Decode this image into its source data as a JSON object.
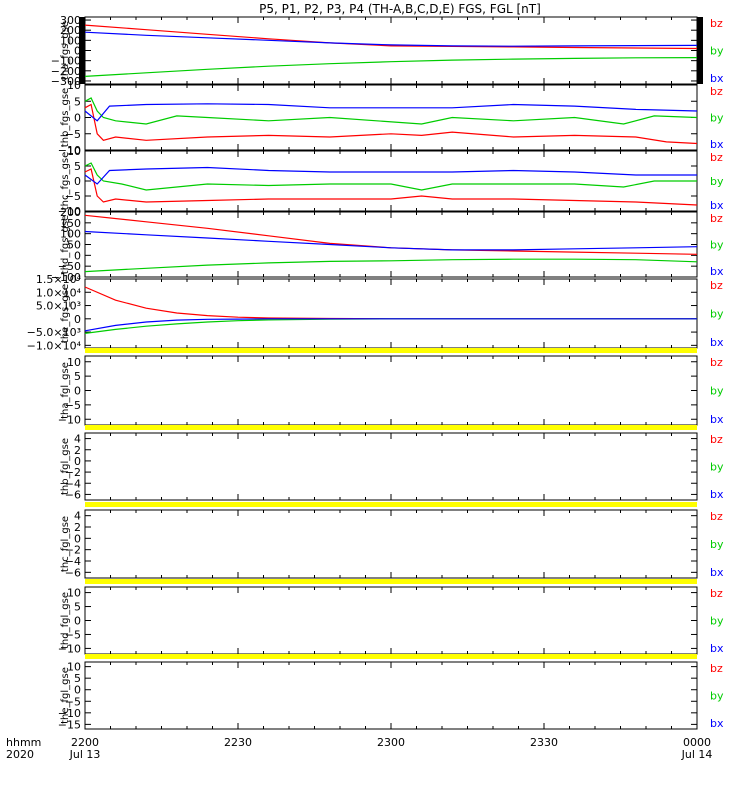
{
  "chart_data": {
    "type": "line",
    "title": "P5, P1, P2, P3, P4 (TH-A,B,C,D,E) FGS, FGL [nT]",
    "x_axis": {
      "ticks": [
        "2200",
        "2230",
        "2300",
        "2330",
        "0000"
      ],
      "dates": {
        "start": "Jul 13",
        "end": "Jul 14"
      },
      "label_top": "hhmm",
      "label_bottom": "2020"
    },
    "colors": {
      "bx": "#0000ff",
      "by": "#00cc00",
      "bz": "#ff0000",
      "gap_bar": "#ffff00"
    },
    "panels": [
      {
        "ylabel": "tha_fgs_gse",
        "ylim": [
          -330,
          330
        ],
        "ticks": [
          300,
          200,
          100,
          0,
          -100,
          -200,
          -300
        ],
        "tick_labels": [
          "300",
          "200",
          "100",
          "0",
          "−100",
          "−200",
          "−300"
        ],
        "legend": [
          "bz",
          "by",
          "bx"
        ],
        "edge_black_bars": true,
        "series": [
          {
            "name": "bz",
            "x": [
              0,
              0.1,
              0.2,
              0.3,
              0.4,
              0.5,
              0.6,
              0.7,
              0.8,
              0.9,
              1
            ],
            "y": [
              250,
              205,
              160,
              115,
              75,
              45,
              40,
              35,
              30,
              25,
              20
            ]
          },
          {
            "name": "by",
            "x": [
              0,
              0.1,
              0.2,
              0.3,
              0.4,
              0.5,
              0.6,
              0.7,
              0.8,
              0.9,
              1
            ],
            "y": [
              -255,
              -220,
              -185,
              -155,
              -130,
              -110,
              -95,
              -85,
              -78,
              -72,
              -70
            ]
          },
          {
            "name": "bx",
            "x": [
              0,
              0.1,
              0.2,
              0.3,
              0.4,
              0.5,
              0.6,
              0.7,
              0.8,
              0.9,
              1
            ],
            "y": [
              180,
              150,
              125,
              100,
              75,
              55,
              45,
              42,
              45,
              48,
              50
            ]
          }
        ]
      },
      {
        "ylabel": "thb_fgs_gse",
        "ylim": [
          -10,
          10
        ],
        "ticks": [
          10,
          5,
          0,
          -5,
          -10
        ],
        "tick_labels": [
          "10",
          "5",
          "0",
          "−5",
          "−10"
        ],
        "legend": [
          "bz",
          "by",
          "bx"
        ],
        "series": [
          {
            "name": "bz",
            "x": [
              0,
              0.01,
              0.02,
              0.03,
              0.05,
              0.1,
              0.2,
              0.3,
              0.4,
              0.5,
              0.55,
              0.6,
              0.7,
              0.8,
              0.9,
              0.95,
              1
            ],
            "y": [
              3,
              4,
              -5,
              -7,
              -6,
              -7,
              -6,
              -5.5,
              -6,
              -5,
              -5.5,
              -4.5,
              -6,
              -5.5,
              -6,
              -7.5,
              -8
            ]
          },
          {
            "name": "by",
            "x": [
              0,
              0.01,
              0.02,
              0.03,
              0.05,
              0.1,
              0.15,
              0.2,
              0.3,
              0.4,
              0.55,
              0.6,
              0.7,
              0.8,
              0.88,
              0.93,
              1
            ],
            "y": [
              5,
              6,
              2,
              0,
              -1,
              -2,
              0.5,
              0,
              -1,
              0,
              -2,
              0,
              -1,
              0,
              -2,
              0.5,
              0
            ]
          },
          {
            "name": "bx",
            "x": [
              0,
              0.02,
              0.04,
              0.1,
              0.2,
              0.3,
              0.4,
              0.5,
              0.6,
              0.7,
              0.8,
              0.9,
              1
            ],
            "y": [
              2,
              -1,
              3.5,
              4,
              4.2,
              4,
              3,
              3,
              3,
              4,
              3.5,
              2.5,
              2
            ]
          }
        ]
      },
      {
        "ylabel": "thc_fgs_gse",
        "ylim": [
          -10,
          10
        ],
        "ticks": [
          10,
          5,
          0,
          -5,
          -10
        ],
        "tick_labels": [
          "10",
          "5",
          "0",
          "−5",
          "−10"
        ],
        "legend": [
          "bz",
          "by",
          "bx"
        ],
        "series": [
          {
            "name": "bz",
            "x": [
              0,
              0.01,
              0.02,
              0.03,
              0.05,
              0.1,
              0.2,
              0.3,
              0.4,
              0.5,
              0.55,
              0.6,
              0.7,
              0.8,
              0.9,
              1
            ],
            "y": [
              3,
              4,
              -5,
              -7,
              -6,
              -7,
              -6.5,
              -6,
              -6,
              -6,
              -5,
              -6,
              -6,
              -6.5,
              -7,
              -8
            ]
          },
          {
            "name": "by",
            "x": [
              0,
              0.01,
              0.02,
              0.03,
              0.06,
              0.1,
              0.2,
              0.3,
              0.4,
              0.5,
              0.55,
              0.6,
              0.7,
              0.8,
              0.88,
              0.93,
              1
            ],
            "y": [
              5,
              6,
              2,
              0,
              -1,
              -3,
              -1,
              -1.5,
              -1,
              -1,
              -3,
              -1,
              -1,
              -1,
              -2,
              0,
              0
            ]
          },
          {
            "name": "bx",
            "x": [
              0,
              0.02,
              0.04,
              0.1,
              0.2,
              0.3,
              0.4,
              0.5,
              0.6,
              0.7,
              0.8,
              0.9,
              1
            ],
            "y": [
              2,
              -1,
              3.5,
              4,
              4.5,
              3.5,
              3,
              3,
              3,
              3.5,
              3,
              2,
              2
            ]
          }
        ]
      },
      {
        "ylabel": "thd_fgs_gse",
        "ylim": [
          -100,
          200
        ],
        "ticks": [
          200,
          150,
          100,
          50,
          0,
          -50,
          -100
        ],
        "tick_labels": [
          "200",
          "150",
          "100",
          "50",
          "0",
          "−50",
          "−100"
        ],
        "legend": [
          "bz",
          "by",
          "bx"
        ],
        "series": [
          {
            "name": "bz",
            "x": [
              0,
              0.1,
              0.2,
              0.3,
              0.4,
              0.5,
              0.6,
              0.7,
              0.8,
              0.9,
              1
            ],
            "y": [
              185,
              155,
              125,
              90,
              55,
              35,
              25,
              20,
              15,
              10,
              5
            ]
          },
          {
            "name": "by",
            "x": [
              0,
              0.1,
              0.2,
              0.3,
              0.4,
              0.5,
              0.6,
              0.7,
              0.8,
              0.9,
              1
            ],
            "y": [
              -75,
              -60,
              -45,
              -35,
              -28,
              -25,
              -20,
              -18,
              -18,
              -20,
              -30
            ]
          },
          {
            "name": "bx",
            "x": [
              0,
              0.1,
              0.2,
              0.3,
              0.4,
              0.5,
              0.6,
              0.7,
              0.8,
              0.9,
              1
            ],
            "y": [
              110,
              95,
              80,
              65,
              50,
              35,
              25,
              25,
              30,
              35,
              40
            ]
          }
        ]
      },
      {
        "ylabel": "the_fgs_gse",
        "ylim": [
          -11000,
          15000
        ],
        "ticks": [
          15000,
          10000,
          5000,
          0,
          -5000,
          -10000
        ],
        "tick_labels": [
          "1.5×10⁴",
          "1.0×10⁴",
          "5.0×10³",
          "0",
          "−5.0×10³",
          "−1.0×10⁴"
        ],
        "legend": [
          "bz",
          "by",
          "bx"
        ],
        "series": [
          {
            "name": "bz",
            "x": [
              0,
              0.05,
              0.1,
              0.15,
              0.2,
              0.25,
              0.3,
              0.4,
              0.5,
              0.6,
              0.8,
              1
            ],
            "y": [
              12000,
              7000,
              4000,
              2200,
              1200,
              600,
              300,
              100,
              0,
              0,
              0,
              0
            ]
          },
          {
            "name": "by",
            "x": [
              0,
              0.05,
              0.1,
              0.15,
              0.2,
              0.25,
              0.3,
              0.4,
              0.5,
              0.6,
              0.8,
              1
            ],
            "y": [
              -5500,
              -4000,
              -2800,
              -1900,
              -1200,
              -700,
              -400,
              -150,
              0,
              0,
              0,
              0
            ]
          },
          {
            "name": "bx",
            "x": [
              0,
              0.05,
              0.1,
              0.15,
              0.2,
              0.25,
              0.3,
              0.4,
              0.5,
              0.6,
              0.8,
              1
            ],
            "y": [
              -4500,
              -2500,
              -1200,
              -500,
              -200,
              -100,
              0,
              0,
              0,
              0,
              0,
              0
            ]
          }
        ]
      },
      {
        "ylabel": "tha_fgl_gse",
        "ylim": [
          -12,
          12
        ],
        "ticks": [
          10,
          5,
          0,
          -5,
          -10
        ],
        "tick_labels": [
          "10",
          "5",
          "0",
          "−5",
          "−10"
        ],
        "legend": [
          "bz",
          "by",
          "bx"
        ],
        "gap_bar": true,
        "series": []
      },
      {
        "ylabel": "thb_fgl_gse",
        "ylim": [
          -7,
          5
        ],
        "ticks": [
          4,
          2,
          0,
          -2,
          -4,
          -6
        ],
        "tick_labels": [
          "4",
          "2",
          "0",
          "−2",
          "−4",
          "−6"
        ],
        "legend": [
          "bz",
          "by",
          "bx"
        ],
        "gap_bar": true,
        "series": []
      },
      {
        "ylabel": "thc_fgl_gse",
        "ylim": [
          -7,
          5
        ],
        "ticks": [
          4,
          2,
          0,
          -2,
          -4,
          -6
        ],
        "tick_labels": [
          "4",
          "2",
          "0",
          "−2",
          "−4",
          "−6"
        ],
        "legend": [
          "bz",
          "by",
          "bx"
        ],
        "gap_bar": true,
        "series": []
      },
      {
        "ylabel": "thd_fgl_gse",
        "ylim": [
          -12,
          12
        ],
        "ticks": [
          10,
          5,
          0,
          -5,
          -10
        ],
        "tick_labels": [
          "10",
          "5",
          "0",
          "−5",
          "−10"
        ],
        "legend": [
          "bz",
          "by",
          "bx"
        ],
        "gap_bar": true,
        "series": []
      },
      {
        "ylabel": "the_fgl_gse",
        "ylim": [
          -17,
          12
        ],
        "ticks": [
          10,
          5,
          0,
          -5,
          -10,
          -15
        ],
        "tick_labels": [
          "10",
          "5",
          "0",
          "−5",
          "−10",
          "−15"
        ],
        "legend": [
          "bz",
          "by",
          "bx"
        ],
        "gap_bar": true,
        "series": []
      }
    ]
  }
}
